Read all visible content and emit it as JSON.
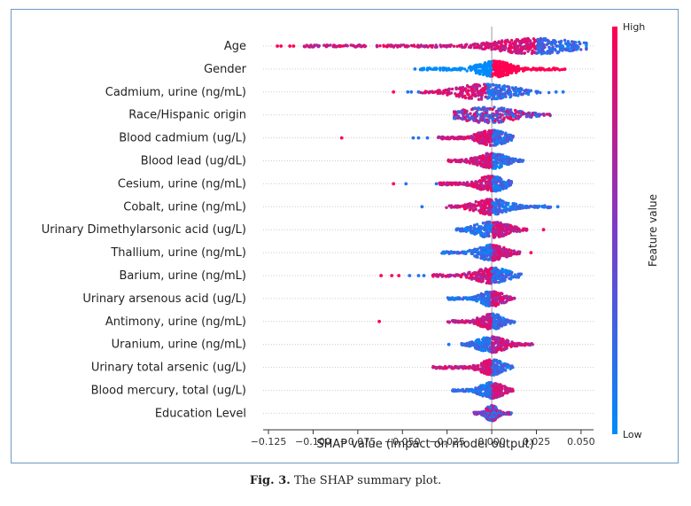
{
  "figure": {
    "caption_label": "Fig. 3.",
    "caption_text": "The SHAP summary plot."
  },
  "chart_data": {
    "type": "scatter",
    "subtype": "shap-beeswarm",
    "title": "",
    "xlabel": "SHAP value (impact on model output)",
    "xlim": [
      -0.128,
      0.057
    ],
    "xticks": [
      -0.125,
      -0.1,
      -0.075,
      -0.05,
      -0.025,
      0.0,
      0.025,
      0.05
    ],
    "xtick_labels": [
      "−0.125",
      "−0.100",
      "−0.075",
      "−0.050",
      "−0.025",
      "0.000",
      "0.025",
      "0.050"
    ],
    "colorbar": {
      "label": "Feature value",
      "high_label": "High",
      "low_label": "Low",
      "high_color": "#ff0052",
      "low_color": "#008bfb"
    },
    "features": [
      {
        "name": "Age",
        "min": -0.123,
        "max": 0.053,
        "peak": 0.025,
        "spread": 0.014,
        "dense_lo": -0.105,
        "dense_hi": 0.048,
        "high_side": "neg",
        "outliers": [
          -0.12,
          -0.118,
          -0.113,
          -0.111
        ]
      },
      {
        "name": "Gender",
        "min": -0.043,
        "max": 0.042,
        "peak": 0.002,
        "spread": 0.006,
        "dense_lo": -0.04,
        "dense_hi": 0.041,
        "high_side": "pos",
        "outliers": [
          -0.043
        ]
      },
      {
        "name": "Cadmium, urine (ng/mL)",
        "min": -0.055,
        "max": 0.04,
        "peak": -0.003,
        "spread": 0.01,
        "dense_lo": -0.04,
        "dense_hi": 0.032,
        "high_side": "neg",
        "outliers": [
          -0.055,
          -0.047,
          -0.045,
          -0.041,
          0.036,
          0.04
        ]
      },
      {
        "name": "Race/Hispanic origin",
        "min": -0.021,
        "max": 0.035,
        "peak": -0.002,
        "spread": 0.01,
        "dense_lo": -0.021,
        "dense_hi": 0.033,
        "high_side": "mix",
        "outliers": []
      },
      {
        "name": "Blood cadmium (ug/L)",
        "min": -0.084,
        "max": 0.012,
        "peak": 0.0,
        "spread": 0.005,
        "dense_lo": -0.03,
        "dense_hi": 0.012,
        "high_side": "neg",
        "outliers": [
          -0.084,
          -0.044,
          -0.041,
          -0.036
        ]
      },
      {
        "name": "Blood lead (ug/dL)",
        "min": -0.025,
        "max": 0.018,
        "peak": 0.0,
        "spread": 0.005,
        "dense_lo": -0.025,
        "dense_hi": 0.018,
        "high_side": "neg",
        "outliers": []
      },
      {
        "name": "Cesium, urine (ng/mL)",
        "min": -0.055,
        "max": 0.011,
        "peak": 0.0,
        "spread": 0.005,
        "dense_lo": -0.03,
        "dense_hi": 0.011,
        "high_side": "neg",
        "outliers": [
          -0.055,
          -0.048,
          -0.031
        ]
      },
      {
        "name": "Cobalt, urine (ng/mL)",
        "min": -0.039,
        "max": 0.037,
        "peak": 0.0,
        "spread": 0.006,
        "dense_lo": -0.026,
        "dense_hi": 0.033,
        "high_side": "neg",
        "outliers": [
          -0.039,
          0.037
        ]
      },
      {
        "name": "Urinary Dimethylarsonic acid (ug/L)",
        "min": -0.02,
        "max": 0.029,
        "peak": 0.0,
        "spread": 0.006,
        "dense_lo": -0.02,
        "dense_hi": 0.02,
        "high_side": "pos",
        "outliers": [
          0.029
        ]
      },
      {
        "name": "Thallium, urine (ng/mL)",
        "min": -0.028,
        "max": 0.022,
        "peak": 0.0,
        "spread": 0.005,
        "dense_lo": -0.028,
        "dense_hi": 0.016,
        "high_side": "pos",
        "outliers": [
          0.022
        ]
      },
      {
        "name": "Barium, urine (ng/mL)",
        "min": -0.062,
        "max": 0.017,
        "peak": 0.0,
        "spread": 0.006,
        "dense_lo": -0.033,
        "dense_hi": 0.017,
        "high_side": "neg",
        "outliers": [
          -0.062,
          -0.056,
          -0.052,
          -0.046,
          -0.041,
          -0.038
        ]
      },
      {
        "name": "Urinary arsenous acid (ug/L)",
        "min": -0.025,
        "max": 0.013,
        "peak": 0.0,
        "spread": 0.004,
        "dense_lo": -0.025,
        "dense_hi": 0.013,
        "high_side": "pos",
        "outliers": []
      },
      {
        "name": "Antimony, urine (ng/mL)",
        "min": -0.063,
        "max": 0.013,
        "peak": 0.0,
        "spread": 0.004,
        "dense_lo": -0.025,
        "dense_hi": 0.013,
        "high_side": "neg",
        "outliers": [
          -0.063
        ]
      },
      {
        "name": "Uranium, urine (ng/mL)",
        "min": -0.024,
        "max": 0.023,
        "peak": 0.0,
        "spread": 0.005,
        "dense_lo": -0.017,
        "dense_hi": 0.023,
        "high_side": "pos",
        "outliers": [
          -0.024
        ]
      },
      {
        "name": "Urinary total arsenic (ug/L)",
        "min": -0.033,
        "max": 0.012,
        "peak": 0.0,
        "spread": 0.004,
        "dense_lo": -0.033,
        "dense_hi": 0.012,
        "high_side": "neg",
        "outliers": []
      },
      {
        "name": "Blood mercury, total (ug/L)",
        "min": -0.022,
        "max": 0.012,
        "peak": 0.0,
        "spread": 0.004,
        "dense_lo": -0.022,
        "dense_hi": 0.012,
        "high_side": "pos",
        "outliers": []
      },
      {
        "name": "Education Level",
        "min": -0.01,
        "max": 0.011,
        "peak": 0.0,
        "spread": 0.002,
        "dense_lo": -0.01,
        "dense_hi": 0.011,
        "high_side": "mix",
        "outliers": []
      }
    ]
  }
}
